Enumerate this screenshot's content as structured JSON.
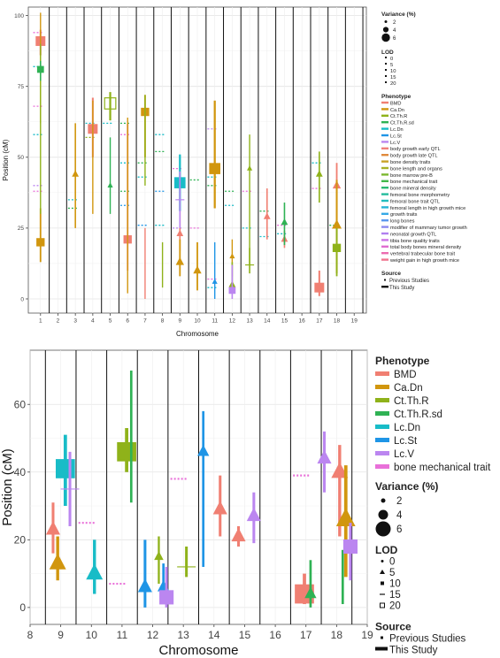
{
  "colors": {
    "BMD": "#f07f72",
    "Ca.Dn": "#d1960e",
    "Ct.Th.R": "#8fb21a",
    "Ct.Th.R.sd": "#2fb254",
    "Lc.Dn": "#18bcc7",
    "Lc.St": "#1f95e6",
    "Lc.V": "#bb86f0",
    "bone mechanical trait": "#e970d9"
  },
  "chart_data": [
    {
      "id": "top",
      "type": "scatter",
      "xlabel": "Chromosome",
      "ylabel": "Position (cM)",
      "xlim": [
        0.3,
        19.7
      ],
      "ylim": [
        -5,
        103
      ],
      "xticks": [
        1,
        2,
        3,
        4,
        5,
        6,
        7,
        8,
        9,
        10,
        11,
        12,
        13,
        14,
        15,
        16,
        17,
        18,
        19
      ],
      "yticks": [
        0,
        25,
        50,
        75,
        100
      ],
      "legend": {
        "variance_title": "Variance (%)",
        "variance_labels": [
          "2",
          "4",
          "6"
        ],
        "lod_title": "LOD",
        "lod_labels": [
          "0",
          "5",
          "10",
          "15",
          "20"
        ],
        "phenotype_title": "Phenotype",
        "phenotypes": [
          "BMD",
          "Ca.Dn",
          "Ct.Th.R",
          "Ct.Th.R.sd",
          "Lc.Dn",
          "Lc.St",
          "Lc.V",
          "body growth early QTL",
          "body growth late QTL",
          "bone density traits",
          "bone length and organs",
          "bone marrow pre-B",
          "bone mechanical trait",
          "bone mineral density",
          "femoral bone morphometry",
          "femoral bone trait QTL",
          "femoral length in high growth mice",
          "growth traits",
          "long bones",
          "modifier of mammary tumor growth",
          "neonatal growth QTL",
          "tibia bone quality traits",
          "total body bones mineral density",
          "vertebral trabecular bone trait",
          "weight gain in high growth mice"
        ],
        "phenotype_colors": [
          "#f07f72",
          "#d1960e",
          "#8fb21a",
          "#2fb254",
          "#18bcc7",
          "#1f95e6",
          "#bb86f0",
          "#f0807a",
          "#e08a3c",
          "#c9a227",
          "#a8b228",
          "#7cb82f",
          "#43b84a",
          "#2bba72",
          "#24bc9c",
          "#22bdbd",
          "#26b6d6",
          "#36a9e6",
          "#5b98ee",
          "#8c8af0",
          "#b07ff0",
          "#cc74e6",
          "#e06cd0",
          "#ec6cb0",
          "#f07590"
        ],
        "source_title": "Source",
        "source_labels": [
          "Previous Studies",
          "This Study"
        ]
      },
      "studies": [
        {
          "x": 1,
          "y": 91,
          "lo": 86,
          "hi": 95,
          "pheno": "BMD",
          "shape": "square",
          "size": 5
        },
        {
          "x": 1,
          "y": 20,
          "lo": 13,
          "hi": 32,
          "pheno": "Ca.Dn",
          "shape": "square",
          "size": 4
        },
        {
          "x": 1,
          "y": 92,
          "lo": 62,
          "hi": 101,
          "pheno": "Ca.Dn",
          "shape": "line",
          "size": 2
        },
        {
          "x": 1,
          "y": 60,
          "lo": 30,
          "hi": 90,
          "pheno": "Ct.Th.R",
          "shape": "line",
          "size": 2
        },
        {
          "x": 1,
          "y": 81,
          "lo": 77,
          "hi": 84,
          "pheno": "Ct.Th.R.sd",
          "shape": "square",
          "size": 3
        },
        {
          "x": 3,
          "y": 44,
          "lo": 25,
          "hi": 62,
          "pheno": "Ca.Dn",
          "shape": "triangle",
          "size": 3
        },
        {
          "x": 4,
          "y": 60,
          "lo": 50,
          "hi": 71,
          "pheno": "BMD",
          "shape": "square",
          "size": 5
        },
        {
          "x": 4,
          "y": 45,
          "lo": 30,
          "hi": 70,
          "pheno": "Ca.Dn",
          "shape": "line",
          "size": 2
        },
        {
          "x": 5,
          "y": 69,
          "lo": 63,
          "hi": 73,
          "pheno": "Ct.Th.R",
          "shape": "open-square",
          "size": 6
        },
        {
          "x": 5,
          "y": 40,
          "lo": 30,
          "hi": 57,
          "pheno": "Ct.Th.R.sd",
          "shape": "triangle",
          "size": 2
        },
        {
          "x": 6,
          "y": 21,
          "lo": 10,
          "hi": 62,
          "pheno": "BMD",
          "shape": "square",
          "size": 4
        },
        {
          "x": 6,
          "y": 62,
          "lo": 2,
          "hi": 64,
          "pheno": "Ca.Dn",
          "shape": "line",
          "size": 2
        },
        {
          "x": 7,
          "y": 66,
          "lo": 50,
          "hi": 72,
          "pheno": "Ca.Dn",
          "shape": "square",
          "size": 4
        },
        {
          "x": 7,
          "y": 10,
          "lo": 0,
          "hi": 25,
          "pheno": "BMD",
          "shape": "line",
          "size": 2
        },
        {
          "x": 7,
          "y": 67,
          "lo": 40,
          "hi": 72,
          "pheno": "Ct.Th.R",
          "shape": "line",
          "size": 2
        },
        {
          "x": 8,
          "y": 10,
          "lo": 4,
          "hi": 20,
          "pheno": "Ct.Th.R",
          "shape": "line",
          "size": 2
        },
        {
          "x": 9,
          "y": 23,
          "lo": 17,
          "hi": 31,
          "pheno": "BMD",
          "shape": "triangle",
          "size": 3
        },
        {
          "x": 9,
          "y": 13,
          "lo": 8,
          "hi": 21,
          "pheno": "Ca.Dn",
          "shape": "triangle",
          "size": 4
        },
        {
          "x": 9,
          "y": 41,
          "lo": 31,
          "hi": 51,
          "pheno": "Lc.Dn",
          "shape": "square",
          "size": 6
        },
        {
          "x": 9,
          "y": 35,
          "lo": 25,
          "hi": 45,
          "pheno": "Lc.V",
          "shape": "plus",
          "size": 3
        },
        {
          "x": 10,
          "y": 10,
          "lo": 3,
          "hi": 20,
          "pheno": "Ca.Dn",
          "shape": "triangle",
          "size": 4
        },
        {
          "x": 11,
          "y": 46,
          "lo": 32,
          "hi": 70,
          "pheno": "Ca.Dn",
          "shape": "square",
          "size": 6
        },
        {
          "x": 11,
          "y": 6,
          "lo": 0,
          "hi": 20,
          "pheno": "Lc.St",
          "shape": "triangle",
          "size": 2
        },
        {
          "x": 12,
          "y": 15,
          "lo": 8,
          "hi": 21,
          "pheno": "Ca.Dn",
          "shape": "triangle",
          "size": 2
        },
        {
          "x": 12,
          "y": 5,
          "lo": 2,
          "hi": 13,
          "pheno": "Ct.Th.R",
          "shape": "triangle",
          "size": 3
        },
        {
          "x": 12,
          "y": 3,
          "lo": 0,
          "hi": 12,
          "pheno": "Lc.V",
          "shape": "square",
          "size": 3
        },
        {
          "x": 13,
          "y": 12,
          "lo": 9,
          "hi": 18,
          "pheno": "Ct.Th.R",
          "shape": "plus",
          "size": 3
        },
        {
          "x": 13,
          "y": 46,
          "lo": 12,
          "hi": 58,
          "pheno": "Ct.Th.R",
          "shape": "triangle",
          "size": 2
        },
        {
          "x": 14,
          "y": 29,
          "lo": 21,
          "hi": 39,
          "pheno": "BMD",
          "shape": "triangle",
          "size": 3
        },
        {
          "x": 15,
          "y": 21,
          "lo": 18,
          "hi": 24,
          "pheno": "BMD",
          "shape": "triangle",
          "size": 3
        },
        {
          "x": 15,
          "y": 27,
          "lo": 19,
          "hi": 34,
          "pheno": "Ct.Th.R.sd",
          "shape": "triangle",
          "size": 3
        },
        {
          "x": 17,
          "y": 4,
          "lo": 1,
          "hi": 10,
          "pheno": "BMD",
          "shape": "square",
          "size": 5
        },
        {
          "x": 17,
          "y": 44,
          "lo": 34,
          "hi": 52,
          "pheno": "Ct.Th.R",
          "shape": "triangle",
          "size": 3
        },
        {
          "x": 18,
          "y": 40,
          "lo": 20,
          "hi": 48,
          "pheno": "BMD",
          "shape": "triangle",
          "size": 4
        },
        {
          "x": 18,
          "y": 26,
          "lo": 9,
          "hi": 42,
          "pheno": "Ca.Dn",
          "shape": "triangle",
          "size": 5
        },
        {
          "x": 18,
          "y": 18,
          "lo": 8,
          "hi": 25,
          "pheno": "Ct.Th.R",
          "shape": "square",
          "size": 4
        }
      ],
      "previous": [
        {
          "x": 1,
          "y": 94,
          "pheno": "bone mechanical trait"
        },
        {
          "x": 1,
          "y": 82,
          "pheno": "Lc.Dn"
        },
        {
          "x": 1,
          "y": 68,
          "pheno": "bone mechanical trait"
        },
        {
          "x": 1,
          "y": 58,
          "pheno": "Lc.Dn"
        },
        {
          "x": 1,
          "y": 40,
          "pheno": "Lc.V"
        },
        {
          "x": 1,
          "y": 38,
          "pheno": "bone mechanical trait"
        },
        {
          "x": 3,
          "y": 35,
          "pheno": "Lc.Dn"
        },
        {
          "x": 3,
          "y": 32,
          "pheno": "Ct.Th.R.sd"
        },
        {
          "x": 4,
          "y": 62,
          "pheno": "Lc.Dn"
        },
        {
          "x": 4,
          "y": 57,
          "pheno": "Ct.Th.R"
        },
        {
          "x": 5,
          "y": 62,
          "pheno": "Lc.Dn"
        },
        {
          "x": 6,
          "y": 62,
          "pheno": "Ct.Th.R.sd"
        },
        {
          "x": 6,
          "y": 58,
          "pheno": "bone mechanical trait"
        },
        {
          "x": 6,
          "y": 48,
          "pheno": "Lc.Dn"
        },
        {
          "x": 6,
          "y": 38,
          "pheno": "Ct.Th.R.sd"
        },
        {
          "x": 6,
          "y": 33,
          "pheno": "Lc.St"
        },
        {
          "x": 7,
          "y": 48,
          "pheno": "Ct.Th.R.sd"
        },
        {
          "x": 7,
          "y": 43,
          "pheno": "Lc.Dn"
        },
        {
          "x": 7,
          "y": 26,
          "pheno": "Lc.St"
        },
        {
          "x": 8,
          "y": 58,
          "pheno": "Lc.Dn"
        },
        {
          "x": 8,
          "y": 52,
          "pheno": "Ct.Th.R.sd"
        },
        {
          "x": 8,
          "y": 38,
          "pheno": "Lc.St"
        },
        {
          "x": 8,
          "y": 26,
          "pheno": "Lc.Dn"
        },
        {
          "x": 9,
          "y": 46,
          "pheno": "bone mechanical trait"
        },
        {
          "x": 9,
          "y": 25,
          "pheno": "Lc.V"
        },
        {
          "x": 10,
          "y": 42,
          "pheno": "Ct.Th.R.sd"
        },
        {
          "x": 10,
          "y": 25,
          "pheno": "bone mechanical trait"
        },
        {
          "x": 11,
          "y": 60,
          "pheno": "Lc.V"
        },
        {
          "x": 11,
          "y": 43,
          "pheno": "Lc.Dn"
        },
        {
          "x": 11,
          "y": 40,
          "pheno": "Ct.Th.R.sd"
        },
        {
          "x": 11,
          "y": 7,
          "pheno": "bone mechanical trait"
        },
        {
          "x": 11,
          "y": 4,
          "pheno": "Lc.Dn"
        },
        {
          "x": 12,
          "y": 38,
          "pheno": "Ct.Th.R.sd"
        },
        {
          "x": 12,
          "y": 33,
          "pheno": "Lc.Dn"
        },
        {
          "x": 13,
          "y": 38,
          "pheno": "bone mechanical trait"
        },
        {
          "x": 13,
          "y": 25,
          "pheno": "Lc.Dn"
        },
        {
          "x": 14,
          "y": 31,
          "pheno": "Ct.Th.R.sd"
        },
        {
          "x": 14,
          "y": 22,
          "pheno": "Lc.Dn"
        },
        {
          "x": 15,
          "y": 26,
          "pheno": "bone mechanical trait"
        },
        {
          "x": 15,
          "y": 23,
          "pheno": "Lc.Dn"
        },
        {
          "x": 17,
          "y": 48,
          "pheno": "Lc.Dn"
        },
        {
          "x": 17,
          "y": 39,
          "pheno": "bone mechanical trait"
        },
        {
          "x": 18,
          "y": 26,
          "pheno": "Ct.Th.R.sd"
        }
      ]
    },
    {
      "id": "bottom",
      "type": "scatter",
      "xlabel": "Chromosome",
      "ylabel": "Position (cM)",
      "xlim": [
        8,
        19
      ],
      "ylim": [
        -5,
        76
      ],
      "xticks": [
        8,
        9,
        10,
        11,
        12,
        13,
        14,
        15,
        16,
        17,
        18,
        19
      ],
      "yticks": [
        0,
        20,
        40,
        60
      ],
      "legend": {
        "phenotype_title": "Phenotype",
        "phenotypes": [
          "BMD",
          "Ca.Dn",
          "Ct.Th.R",
          "Ct.Th.R.sd",
          "Lc.Dn",
          "Lc.St",
          "Lc.V",
          "bone mechanical trait"
        ],
        "variance_title": "Variance (%)",
        "variance_labels": [
          "2",
          "4",
          "6"
        ],
        "lod_title": "LOD",
        "lod_labels": [
          "0",
          "5",
          "10",
          "15",
          "20"
        ],
        "source_title": "Source",
        "source_labels": [
          "Previous Studies",
          "This Study"
        ]
      },
      "studies": [
        {
          "x": 8.75,
          "y": 23,
          "lo": 16,
          "hi": 31,
          "pheno": "BMD",
          "shape": "triangle",
          "size": 4
        },
        {
          "x": 8.9,
          "y": 13,
          "lo": 8,
          "hi": 21,
          "pheno": "Ca.Dn",
          "shape": "triangle",
          "size": 5
        },
        {
          "x": 9.15,
          "y": 41,
          "lo": 30,
          "hi": 51,
          "pheno": "Lc.Dn",
          "shape": "square",
          "size": 6
        },
        {
          "x": 9.3,
          "y": 35,
          "lo": 24,
          "hi": 46,
          "pheno": "Lc.V",
          "shape": "plus",
          "size": 4
        },
        {
          "x": 10.1,
          "y": 10,
          "lo": 4,
          "hi": 20,
          "pheno": "Lc.Dn",
          "shape": "triangle",
          "size": 5
        },
        {
          "x": 11.15,
          "y": 46,
          "lo": 40,
          "hi": 53,
          "pheno": "Ct.Th.R",
          "shape": "square",
          "size": 6
        },
        {
          "x": 11.3,
          "y": 46,
          "lo": 31,
          "hi": 70,
          "pheno": "Ct.Th.R.sd",
          "shape": "line",
          "size": 3
        },
        {
          "x": 11.75,
          "y": 6,
          "lo": 0,
          "hi": 20,
          "pheno": "Lc.St",
          "shape": "triangle",
          "size": 4
        },
        {
          "x": 12.2,
          "y": 15,
          "lo": 7,
          "hi": 21,
          "pheno": "Ct.Th.R",
          "shape": "triangle",
          "size": 2
        },
        {
          "x": 12.35,
          "y": 6,
          "lo": 2,
          "hi": 13,
          "pheno": "Lc.St",
          "shape": "triangle",
          "size": 3
        },
        {
          "x": 12.45,
          "y": 3,
          "lo": 0,
          "hi": 12,
          "pheno": "Lc.V",
          "shape": "square",
          "size": 4
        },
        {
          "x": 13.1,
          "y": 12,
          "lo": 9,
          "hi": 18,
          "pheno": "Ct.Th.R",
          "shape": "plus",
          "size": 4
        },
        {
          "x": 13.65,
          "y": 46,
          "lo": 12,
          "hi": 58,
          "pheno": "Lc.St",
          "shape": "triangle",
          "size": 3
        },
        {
          "x": 14.2,
          "y": 29,
          "lo": 21,
          "hi": 39,
          "pheno": "BMD",
          "shape": "triangle",
          "size": 4
        },
        {
          "x": 14.8,
          "y": 21,
          "lo": 18,
          "hi": 24,
          "pheno": "BMD",
          "shape": "triangle",
          "size": 4
        },
        {
          "x": 15.3,
          "y": 27,
          "lo": 19,
          "hi": 34,
          "pheno": "Lc.V",
          "shape": "triangle",
          "size": 4
        },
        {
          "x": 16.95,
          "y": 4,
          "lo": 1,
          "hi": 10,
          "pheno": "BMD",
          "shape": "square",
          "size": 6
        },
        {
          "x": 17.15,
          "y": 4,
          "lo": 0,
          "hi": 14,
          "pheno": "Ct.Th.R.sd",
          "shape": "triangle",
          "size": 3
        },
        {
          "x": 17.6,
          "y": 44,
          "lo": 34,
          "hi": 52,
          "pheno": "Lc.V",
          "shape": "triangle",
          "size": 4
        },
        {
          "x": 18.1,
          "y": 40,
          "lo": 21,
          "hi": 48,
          "pheno": "BMD",
          "shape": "triangle",
          "size": 5
        },
        {
          "x": 18.2,
          "y": 16,
          "lo": 1,
          "hi": 17,
          "pheno": "Ct.Th.R.sd",
          "shape": "line",
          "size": 3
        },
        {
          "x": 18.3,
          "y": 26,
          "lo": 9,
          "hi": 42,
          "pheno": "Ca.Dn",
          "shape": "triangle",
          "size": 6
        },
        {
          "x": 18.45,
          "y": 18,
          "lo": 8,
          "hi": 25,
          "pheno": "Lc.V",
          "shape": "square",
          "size": 4
        }
      ],
      "previous": [
        {
          "x": 10.0,
          "y": 25,
          "pheno": "bone mechanical trait"
        },
        {
          "x": 11.0,
          "y": 7,
          "pheno": "bone mechanical trait"
        },
        {
          "x": 13.0,
          "y": 38,
          "pheno": "bone mechanical trait"
        },
        {
          "x": 17.0,
          "y": 39,
          "pheno": "bone mechanical trait"
        }
      ]
    }
  ]
}
